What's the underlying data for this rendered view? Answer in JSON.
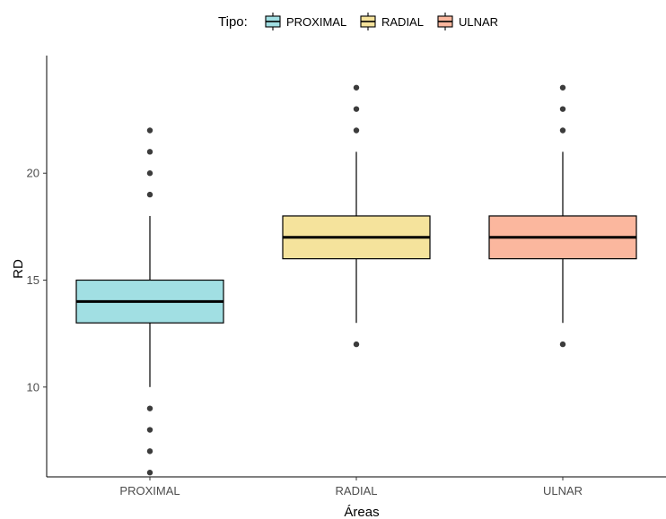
{
  "chart_data": {
    "type": "boxplot",
    "xlabel": "Áreas",
    "ylabel": "RD",
    "ylim": [
      5.8,
      25.5
    ],
    "yticks": [
      10,
      15,
      20
    ],
    "grid": false,
    "legend": {
      "title": "Tipo:",
      "position": "top",
      "entries": [
        "PROXIMAL",
        "RADIAL",
        "ULNAR"
      ]
    },
    "categories": [
      "PROXIMAL",
      "RADIAL",
      "ULNAR"
    ],
    "series": [
      {
        "name": "PROXIMAL",
        "color": "#a1dfe3",
        "whisker_low": 10,
        "q1": 13,
        "median": 14,
        "q3": 15,
        "whisker_high": 18,
        "outliers": [
          6,
          7,
          8,
          9,
          19,
          20,
          21,
          22
        ]
      },
      {
        "name": "RADIAL",
        "color": "#f5e39c",
        "whisker_low": 13,
        "q1": 16,
        "median": 17,
        "q3": 18,
        "whisker_high": 21,
        "outliers": [
          12,
          22,
          23,
          24
        ]
      },
      {
        "name": "ULNAR",
        "color": "#fbb79e",
        "whisker_low": 13,
        "q1": 16,
        "median": 17,
        "q3": 18,
        "whisker_high": 21,
        "outliers": [
          12,
          22,
          23,
          24
        ]
      }
    ]
  }
}
